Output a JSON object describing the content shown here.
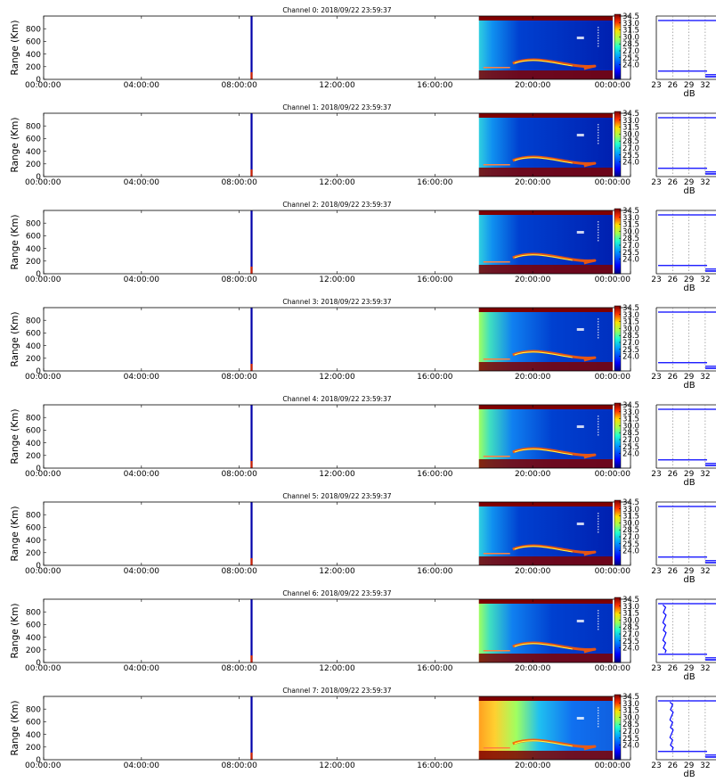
{
  "colors": {
    "low": "#00007f",
    "mid_low": "#1f6fff",
    "mid": "#20e0e0",
    "mid_high": "#c0ff30",
    "high": "#ff5a00",
    "max": "#7f0000",
    "marker_line": "#0000aa",
    "profile_line": "#0000ff"
  },
  "colorbar_ticks": [
    "34.5",
    "33.0",
    "31.5",
    "30.0",
    "28.5",
    "27.0",
    "25.5",
    "24.0"
  ],
  "chart_data": [
    {
      "type": "heatmap",
      "title": "Channel 0: 2018/09/22 23:59:37",
      "ylabel": "Range (Km)",
      "x_ticks": [
        "00:00:00",
        "04:00:00",
        "08:00:00",
        "12:00:00",
        "16:00:00",
        "20:00:00",
        "00:00:00"
      ],
      "y_ticks": [
        "0",
        "200",
        "400",
        "600",
        "800"
      ],
      "ylim": [
        0,
        1000
      ],
      "x_range_hours": [
        0,
        24
      ],
      "data_start_hour": 17.8,
      "marker_hour": 8.5,
      "color_range": [
        24.0,
        34.5
      ],
      "background_level": "mid",
      "profile": {
        "xlabel": "dB",
        "x_ticks": [
          "23",
          "26",
          "29",
          "32"
        ],
        "xlim": [
          23,
          34
        ],
        "y_lines": [
          930,
          130
        ],
        "noise_level_db": null
      }
    },
    {
      "type": "heatmap",
      "title": "Channel 1: 2018/09/22 23:59:37",
      "ylabel": "Range (Km)",
      "x_ticks": [
        "00:00:00",
        "04:00:00",
        "08:00:00",
        "12:00:00",
        "16:00:00",
        "20:00:00",
        "00:00:00"
      ],
      "y_ticks": [
        "0",
        "200",
        "400",
        "600",
        "800"
      ],
      "ylim": [
        0,
        1000
      ],
      "x_range_hours": [
        0,
        24
      ],
      "data_start_hour": 17.8,
      "marker_hour": 8.5,
      "color_range": [
        24.0,
        34.5
      ],
      "background_level": "mid",
      "profile": {
        "xlabel": "dB",
        "x_ticks": [
          "23",
          "26",
          "29",
          "32"
        ],
        "xlim": [
          23,
          34
        ],
        "y_lines": [
          930,
          130
        ],
        "noise_level_db": null
      }
    },
    {
      "type": "heatmap",
      "title": "Channel 2: 2018/09/22 23:59:37",
      "ylabel": "Range (Km)",
      "x_ticks": [
        "00:00:00",
        "04:00:00",
        "08:00:00",
        "12:00:00",
        "16:00:00",
        "20:00:00",
        "00:00:00"
      ],
      "y_ticks": [
        "0",
        "200",
        "400",
        "600",
        "800"
      ],
      "ylim": [
        0,
        1000
      ],
      "x_range_hours": [
        0,
        24
      ],
      "data_start_hour": 17.8,
      "marker_hour": 8.5,
      "color_range": [
        24.0,
        34.5
      ],
      "background_level": "mid",
      "profile": {
        "xlabel": "dB",
        "x_ticks": [
          "23",
          "26",
          "29",
          "32"
        ],
        "xlim": [
          23,
          34
        ],
        "y_lines": [
          930,
          130
        ],
        "noise_level_db": null
      }
    },
    {
      "type": "heatmap",
      "title": "Channel 3: 2018/09/22 23:59:37",
      "ylabel": "Range (Km)",
      "x_ticks": [
        "00:00:00",
        "04:00:00",
        "08:00:00",
        "12:00:00",
        "16:00:00",
        "20:00:00",
        "00:00:00"
      ],
      "y_ticks": [
        "0",
        "200",
        "400",
        "600",
        "800"
      ],
      "ylim": [
        0,
        1000
      ],
      "x_range_hours": [
        0,
        24
      ],
      "data_start_hour": 17.8,
      "marker_hour": 8.5,
      "color_range": [
        24.0,
        34.5
      ],
      "background_level": "mid_high",
      "profile": {
        "xlabel": "dB",
        "x_ticks": [
          "23",
          "26",
          "29",
          "32"
        ],
        "xlim": [
          23,
          34
        ],
        "y_lines": [
          930,
          130
        ],
        "noise_level_db": null
      }
    },
    {
      "type": "heatmap",
      "title": "Channel 4: 2018/09/22 23:59:37",
      "ylabel": "Range (Km)",
      "x_ticks": [
        "00:00:00",
        "04:00:00",
        "08:00:00",
        "12:00:00",
        "16:00:00",
        "20:00:00",
        "00:00:00"
      ],
      "y_ticks": [
        "0",
        "200",
        "400",
        "600",
        "800"
      ],
      "ylim": [
        0,
        1000
      ],
      "x_range_hours": [
        0,
        24
      ],
      "data_start_hour": 17.8,
      "marker_hour": 8.5,
      "color_range": [
        24.0,
        34.5
      ],
      "background_level": "mid_high",
      "profile": {
        "xlabel": "dB",
        "x_ticks": [
          "23",
          "26",
          "29",
          "32"
        ],
        "xlim": [
          23,
          34
        ],
        "y_lines": [
          930,
          130
        ],
        "noise_level_db": null
      }
    },
    {
      "type": "heatmap",
      "title": "Channel 5: 2018/09/22 23:59:37",
      "ylabel": "Range (Km)",
      "x_ticks": [
        "00:00:00",
        "04:00:00",
        "08:00:00",
        "12:00:00",
        "16:00:00",
        "20:00:00",
        "00:00:00"
      ],
      "y_ticks": [
        "0",
        "200",
        "400",
        "600",
        "800"
      ],
      "ylim": [
        0,
        1000
      ],
      "x_range_hours": [
        0,
        24
      ],
      "data_start_hour": 17.8,
      "marker_hour": 8.5,
      "color_range": [
        24.0,
        34.5
      ],
      "background_level": "mid",
      "profile": {
        "xlabel": "dB",
        "x_ticks": [
          "23",
          "26",
          "29",
          "32"
        ],
        "xlim": [
          23,
          34
        ],
        "y_lines": [
          930,
          130
        ],
        "noise_level_db": null
      }
    },
    {
      "type": "heatmap",
      "title": "Channel 6: 2018/09/22 23:59:37",
      "ylabel": "Range (Km)",
      "x_ticks": [
        "00:00:00",
        "04:00:00",
        "08:00:00",
        "12:00:00",
        "16:00:00",
        "20:00:00",
        "00:00:00"
      ],
      "y_ticks": [
        "0",
        "200",
        "400",
        "600",
        "800"
      ],
      "ylim": [
        0,
        1000
      ],
      "x_range_hours": [
        0,
        24
      ],
      "data_start_hour": 17.8,
      "marker_hour": 8.5,
      "color_range": [
        24.0,
        34.5
      ],
      "background_level": "mid_high",
      "profile": {
        "xlabel": "dB",
        "x_ticks": [
          "23",
          "26",
          "29",
          "32"
        ],
        "xlim": [
          23,
          34
        ],
        "y_lines": [
          930,
          130
        ],
        "noise_level_db": 24.5
      }
    },
    {
      "type": "heatmap",
      "title": "Channel 7: 2018/09/22 23:59:37",
      "ylabel": "Range (Km)",
      "x_ticks": [
        "00:00:00",
        "04:00:00",
        "08:00:00",
        "12:00:00",
        "16:00:00",
        "20:00:00",
        "00:00:00"
      ],
      "y_ticks": [
        "0",
        "200",
        "400",
        "600",
        "800"
      ],
      "ylim": [
        0,
        1000
      ],
      "x_range_hours": [
        0,
        24
      ],
      "data_start_hour": 17.8,
      "marker_hour": 8.5,
      "color_range": [
        24.0,
        34.5
      ],
      "background_level": "high",
      "profile": {
        "xlabel": "dB",
        "x_ticks": [
          "23",
          "26",
          "29",
          "32"
        ],
        "xlim": [
          23,
          34
        ],
        "y_lines": [
          930,
          130
        ],
        "noise_level_db": 25.8
      }
    }
  ]
}
